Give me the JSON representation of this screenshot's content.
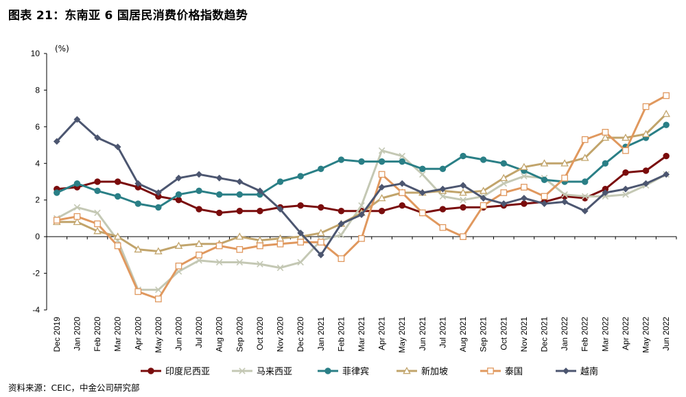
{
  "title": "图表 21：东南亚 6 国居民消费价格指数趋势",
  "source": "资料来源：CEIC，中金公司研究部",
  "chart_data": {
    "type": "line",
    "unit_label": "(%)",
    "ylim": [
      -4,
      10
    ],
    "yticks": [
      "10",
      "8",
      "6",
      "4",
      "2",
      "0",
      "-2",
      "-4"
    ],
    "categories": [
      "Dec 2019",
      "Jan 2020",
      "Feb 2020",
      "Mar 2020",
      "Apr 2020",
      "May 2020",
      "Jun 2020",
      "Jul 2020",
      "Aug 2020",
      "Sep 2020",
      "Oct 2020",
      "Nov 2020",
      "Dec 2020",
      "Jan 2021",
      "Feb 2021",
      "Mar 2021",
      "Apr 2021",
      "May 2021",
      "Jun 2021",
      "Jul 2021",
      "Aug 2021",
      "Sep 2021",
      "Oct 2021",
      "Nov 2021",
      "Dec 2021",
      "Jan 2022",
      "Feb 2022",
      "Mar 2022",
      "Apr 2022",
      "May 2022",
      "Jun 2022"
    ],
    "legend_position": "bottom",
    "series": [
      {
        "name": "印度尼西亚",
        "color": "#7a0c0c",
        "marker": "circle",
        "values": [
          2.6,
          2.7,
          3.0,
          3.0,
          2.7,
          2.2,
          2.0,
          1.5,
          1.3,
          1.4,
          1.4,
          1.6,
          1.7,
          1.6,
          1.4,
          1.4,
          1.4,
          1.7,
          1.3,
          1.5,
          1.6,
          1.6,
          1.7,
          1.8,
          1.9,
          2.2,
          2.1,
          2.6,
          3.5,
          3.6,
          4.4
        ]
      },
      {
        "name": "马来西亚",
        "color": "#c4c8b4",
        "marker": "x",
        "values": [
          1.0,
          1.6,
          1.3,
          -0.2,
          -2.9,
          -2.9,
          -1.9,
          -1.3,
          -1.4,
          -1.4,
          -1.5,
          -1.7,
          -1.4,
          -0.2,
          0.1,
          1.7,
          4.7,
          4.4,
          3.4,
          2.2,
          2.0,
          2.2,
          2.9,
          3.3,
          3.2,
          2.3,
          2.2,
          2.2,
          2.3,
          2.8,
          3.4
        ]
      },
      {
        "name": "菲律宾",
        "color": "#2a7f86",
        "marker": "circle",
        "values": [
          2.4,
          2.9,
          2.5,
          2.2,
          1.8,
          1.6,
          2.3,
          2.5,
          2.3,
          2.3,
          2.3,
          3.0,
          3.3,
          3.7,
          4.2,
          4.1,
          4.1,
          4.1,
          3.7,
          3.7,
          4.4,
          4.2,
          4.0,
          3.6,
          3.1,
          3.0,
          3.0,
          4.0,
          4.9,
          5.4,
          6.1
        ]
      },
      {
        "name": "新加坡",
        "color": "#c1a46b",
        "marker": "triangle",
        "values": [
          0.8,
          0.8,
          0.3,
          0.0,
          -0.7,
          -0.8,
          -0.5,
          -0.4,
          -0.4,
          0.0,
          -0.2,
          -0.1,
          0.0,
          0.2,
          0.7,
          1.3,
          2.1,
          2.4,
          2.4,
          2.5,
          2.4,
          2.5,
          3.2,
          3.8,
          4.0,
          4.0,
          4.3,
          5.4,
          5.4,
          5.6,
          6.7
        ]
      },
      {
        "name": "泰国",
        "color": "#e0985e",
        "marker": "square",
        "values": [
          0.9,
          1.1,
          0.7,
          -0.5,
          -3.0,
          -3.4,
          -1.6,
          -1.0,
          -0.5,
          -0.7,
          -0.5,
          -0.4,
          -0.3,
          -0.3,
          -1.2,
          -0.1,
          3.4,
          2.4,
          1.3,
          0.5,
          0.0,
          1.7,
          2.4,
          2.7,
          2.2,
          3.2,
          5.3,
          5.7,
          4.7,
          7.1,
          7.7
        ]
      },
      {
        "name": "越南",
        "color": "#4c5670",
        "marker": "diamond",
        "values": [
          5.2,
          6.4,
          5.4,
          4.9,
          2.9,
          2.4,
          3.2,
          3.4,
          3.2,
          3.0,
          2.5,
          1.5,
          0.2,
          -1.0,
          0.7,
          1.2,
          2.7,
          2.9,
          2.4,
          2.6,
          2.8,
          2.1,
          1.8,
          2.1,
          1.8,
          1.9,
          1.4,
          2.4,
          2.6,
          2.9,
          3.4
        ]
      }
    ]
  }
}
